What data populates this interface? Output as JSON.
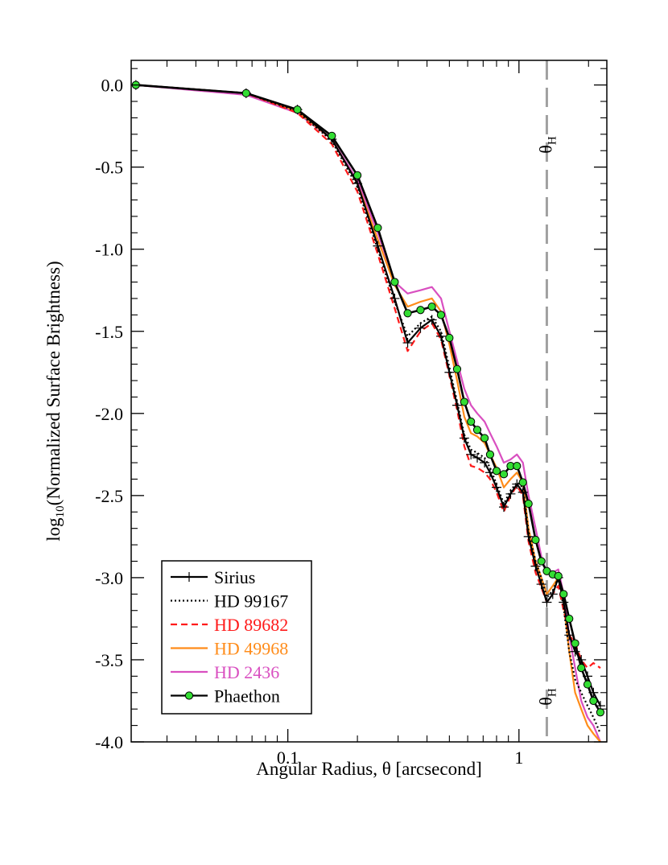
{
  "chart_data": {
    "type": "line",
    "title": "",
    "xlabel": "Angular Radius, θ [arcsecond]",
    "ylabel_main": "log",
    "ylabel_sub": "10",
    "ylabel_rest": "(Normalized Surface Brightness)",
    "x_scale": "log",
    "xlim": [
      0.021,
      2.4
    ],
    "ylim": [
      -4.0,
      0.15
    ],
    "grid": false,
    "legend_position": "bottom-left",
    "x_ticks": [
      {
        "value": 0.1,
        "label": "0.1"
      },
      {
        "value": 1,
        "label": "1"
      }
    ],
    "y_ticks": [
      {
        "value": 0.0,
        "label": "0.0"
      },
      {
        "value": -0.5,
        "label": "-0.5"
      },
      {
        "value": -1.0,
        "label": "-1.0"
      },
      {
        "value": -1.5,
        "label": "-1.5"
      },
      {
        "value": -2.0,
        "label": "-2.0"
      },
      {
        "value": -2.5,
        "label": "-2.5"
      },
      {
        "value": -3.0,
        "label": "-3.0"
      },
      {
        "value": -3.5,
        "label": "-3.5"
      },
      {
        "value": -4.0,
        "label": "-4.0"
      }
    ],
    "reference_line": {
      "x": 1.32,
      "label_main": "θ",
      "label_sub": "H",
      "color": "#a0a0a0"
    },
    "series": [
      {
        "name": "Sirius",
        "color": "#000000",
        "style": "solid-plus",
        "x": [
          0.022,
          0.066,
          0.11,
          0.155,
          0.2,
          0.245,
          0.29,
          0.33,
          0.375,
          0.42,
          0.46,
          0.5,
          0.54,
          0.58,
          0.62,
          0.66,
          0.71,
          0.75,
          0.8,
          0.86,
          0.92,
          0.98,
          1.04,
          1.1,
          1.18,
          1.25,
          1.32,
          1.4,
          1.48,
          1.56,
          1.65,
          1.75,
          1.86,
          1.98,
          2.1,
          2.25
        ],
        "y": [
          0.0,
          -0.05,
          -0.15,
          -0.33,
          -0.6,
          -0.98,
          -1.3,
          -1.57,
          -1.48,
          -1.43,
          -1.53,
          -1.75,
          -1.95,
          -2.15,
          -2.25,
          -2.27,
          -2.3,
          -2.36,
          -2.45,
          -2.57,
          -2.49,
          -2.43,
          -2.48,
          -2.75,
          -2.93,
          -3.04,
          -3.15,
          -3.1,
          -3.0,
          -3.15,
          -3.35,
          -3.45,
          -3.5,
          -3.6,
          -3.7,
          -3.78
        ]
      },
      {
        "name": "HD 99167",
        "color": "#000000",
        "style": "dotted",
        "x": [
          0.022,
          0.066,
          0.11,
          0.155,
          0.2,
          0.245,
          0.29,
          0.33,
          0.375,
          0.42,
          0.46,
          0.5,
          0.54,
          0.58,
          0.62,
          0.66,
          0.71,
          0.75,
          0.8,
          0.86,
          0.92,
          0.98,
          1.04,
          1.1,
          1.18,
          1.25,
          1.32,
          1.4,
          1.48,
          1.56,
          1.65,
          1.75,
          1.86,
          1.98,
          2.1,
          2.25
        ],
        "y": [
          0.0,
          -0.05,
          -0.16,
          -0.34,
          -0.62,
          -1.0,
          -1.32,
          -1.53,
          -1.45,
          -1.41,
          -1.5,
          -1.72,
          -1.93,
          -2.13,
          -2.22,
          -2.24,
          -2.27,
          -2.33,
          -2.43,
          -2.55,
          -2.47,
          -2.42,
          -2.45,
          -2.72,
          -2.9,
          -3.0,
          -3.12,
          -3.08,
          -3.0,
          -3.18,
          -3.45,
          -3.62,
          -3.7,
          -3.78,
          -3.85,
          -3.95
        ]
      },
      {
        "name": "HD 89682",
        "color": "#ff1a1a",
        "style": "dashed",
        "x": [
          0.022,
          0.066,
          0.11,
          0.155,
          0.2,
          0.245,
          0.29,
          0.33,
          0.375,
          0.42,
          0.46,
          0.5,
          0.54,
          0.58,
          0.62,
          0.66,
          0.71,
          0.75,
          0.8,
          0.86,
          0.92,
          0.98,
          1.04,
          1.1,
          1.18,
          1.25,
          1.32,
          1.4,
          1.48,
          1.56,
          1.65,
          1.75,
          1.86,
          1.98,
          2.1,
          2.25
        ],
        "y": [
          0.0,
          -0.05,
          -0.17,
          -0.36,
          -0.65,
          -1.03,
          -1.36,
          -1.62,
          -1.5,
          -1.45,
          -1.55,
          -1.77,
          -1.98,
          -2.2,
          -2.32,
          -2.33,
          -2.36,
          -2.4,
          -2.48,
          -2.6,
          -2.5,
          -2.44,
          -2.5,
          -2.78,
          -2.97,
          -3.06,
          -3.15,
          -3.1,
          -3.05,
          -3.2,
          -3.35,
          -3.4,
          -3.5,
          -3.55,
          -3.52,
          -3.55
        ]
      },
      {
        "name": "HD 49968",
        "color": "#ff8c1a",
        "style": "solid",
        "x": [
          0.022,
          0.066,
          0.11,
          0.155,
          0.2,
          0.245,
          0.29,
          0.33,
          0.375,
          0.42,
          0.46,
          0.5,
          0.54,
          0.58,
          0.62,
          0.66,
          0.71,
          0.75,
          0.8,
          0.86,
          0.92,
          0.98,
          1.04,
          1.1,
          1.18,
          1.25,
          1.32,
          1.4,
          1.48,
          1.56,
          1.65,
          1.75,
          1.86,
          1.98,
          2.1,
          2.25
        ],
        "y": [
          0.0,
          -0.05,
          -0.16,
          -0.33,
          -0.6,
          -0.94,
          -1.22,
          -1.35,
          -1.32,
          -1.3,
          -1.38,
          -1.58,
          -1.8,
          -2.02,
          -2.12,
          -2.14,
          -2.18,
          -2.25,
          -2.33,
          -2.45,
          -2.4,
          -2.36,
          -2.42,
          -2.7,
          -2.9,
          -3.0,
          -3.1,
          -3.05,
          -3.0,
          -3.15,
          -3.45,
          -3.7,
          -3.8,
          -3.9,
          -3.95,
          -4.0
        ]
      },
      {
        "name": "HD 2436",
        "color": "#d94fc0",
        "style": "solid",
        "x": [
          0.022,
          0.066,
          0.11,
          0.155,
          0.2,
          0.245,
          0.29,
          0.33,
          0.375,
          0.42,
          0.46,
          0.5,
          0.54,
          0.58,
          0.62,
          0.66,
          0.71,
          0.75,
          0.8,
          0.86,
          0.92,
          0.98,
          1.04,
          1.1,
          1.18,
          1.25,
          1.32,
          1.4,
          1.48,
          1.56,
          1.65,
          1.75,
          1.86,
          1.98,
          2.1,
          2.25
        ],
        "y": [
          0.0,
          -0.06,
          -0.17,
          -0.33,
          -0.58,
          -0.9,
          -1.2,
          -1.27,
          -1.25,
          -1.23,
          -1.3,
          -1.5,
          -1.68,
          -1.85,
          -1.95,
          -2.0,
          -2.05,
          -2.12,
          -2.2,
          -2.3,
          -2.28,
          -2.25,
          -2.3,
          -2.5,
          -2.7,
          -2.87,
          -2.98,
          -2.97,
          -2.95,
          -3.1,
          -3.35,
          -3.55,
          -3.75,
          -3.85,
          -3.9,
          -4.0
        ]
      },
      {
        "name": "Phaethon",
        "color": "#000000",
        "marker_color": "#33dd33",
        "style": "solid-circle",
        "x": [
          0.022,
          0.066,
          0.11,
          0.155,
          0.2,
          0.245,
          0.29,
          0.33,
          0.375,
          0.42,
          0.46,
          0.5,
          0.54,
          0.58,
          0.62,
          0.66,
          0.71,
          0.75,
          0.8,
          0.86,
          0.92,
          0.98,
          1.04,
          1.1,
          1.18,
          1.25,
          1.32,
          1.4,
          1.48,
          1.56,
          1.65,
          1.75,
          1.86,
          1.98,
          2.1,
          2.25
        ],
        "y": [
          0.0,
          -0.05,
          -0.15,
          -0.31,
          -0.55,
          -0.87,
          -1.2,
          -1.39,
          -1.37,
          -1.35,
          -1.4,
          -1.54,
          -1.73,
          -1.93,
          -2.05,
          -2.1,
          -2.15,
          -2.25,
          -2.35,
          -2.37,
          -2.32,
          -2.32,
          -2.42,
          -2.55,
          -2.77,
          -2.9,
          -2.96,
          -2.98,
          -2.99,
          -3.1,
          -3.25,
          -3.4,
          -3.55,
          -3.65,
          -3.75,
          -3.82
        ]
      }
    ]
  }
}
